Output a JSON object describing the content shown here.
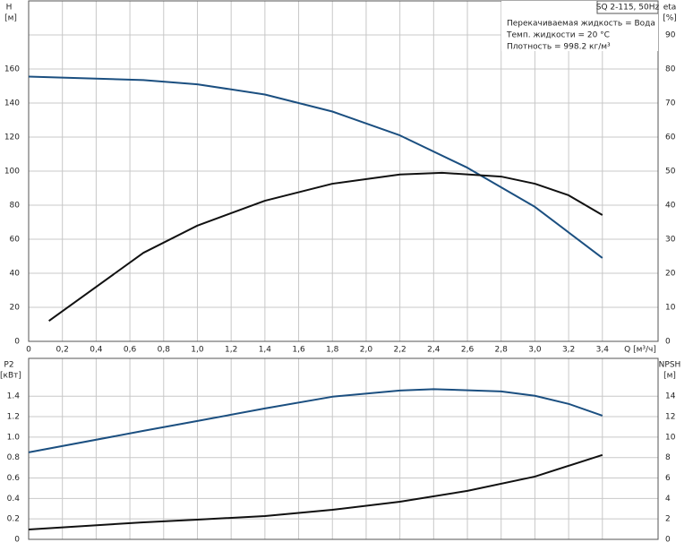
{
  "chart_data": [
    {
      "type": "line",
      "title": "SQ 2-115, 50Hz",
      "annotations": [
        "Перекачиваемая жидкость = Вода",
        "Темп. жидкости = 20 °C",
        "Плотность = 998.2 кг/м³"
      ],
      "xlabel": "Q [м³/ч]",
      "ylabel": "H",
      "ylabel_unit": "[м]",
      "y2label": "eta",
      "y2label_unit": "[%]",
      "xlim": [
        0,
        3.73
      ],
      "ylim": [
        0,
        200
      ],
      "y2lim": [
        0,
        100
      ],
      "grid": true,
      "xticks": [
        0,
        {
          "value": 0.2,
          "label": "0,2"
        },
        {
          "value": 0.4,
          "label": "0,4"
        },
        {
          "value": 0.6,
          "label": "0,6"
        },
        {
          "value": 0.8,
          "label": "0,8"
        },
        {
          "value": 1.0,
          "label": "1,0"
        },
        {
          "value": 1.2,
          "label": "1,2"
        },
        {
          "value": 1.4,
          "label": "1,4"
        },
        {
          "value": 1.6,
          "label": "1,6"
        },
        {
          "value": 1.8,
          "label": "1,8"
        },
        {
          "value": 2.0,
          "label": "2,0"
        },
        {
          "value": 2.2,
          "label": "2,2"
        },
        {
          "value": 2.4,
          "label": "2,4"
        },
        {
          "value": 2.6,
          "label": "2,6"
        },
        {
          "value": 2.8,
          "label": "2,8"
        },
        {
          "value": 3.0,
          "label": "3,0"
        },
        {
          "value": 3.2,
          "label": "3,2"
        },
        {
          "value": 3.4,
          "label": "3,4"
        }
      ],
      "yticks": [
        0,
        20,
        40,
        60,
        80,
        100,
        120,
        140,
        160
      ],
      "y2ticks": [
        0,
        10,
        20,
        30,
        40,
        50,
        60,
        70,
        80,
        90
      ],
      "series": [
        {
          "name": "H",
          "color": "#1b4f80",
          "x": [
            0,
            0.68,
            1.0,
            1.4,
            1.8,
            2.2,
            2.6,
            3.0,
            3.4
          ],
          "values": [
            155.5,
            153.5,
            151,
            145,
            135,
            121,
            102,
            79,
            49
          ]
        },
        {
          "name": "eta",
          "color": "#111111",
          "axis": "y2",
          "x": [
            0.12,
            0.68,
            1.0,
            1.4,
            1.8,
            2.2,
            2.45,
            2.8,
            3.0,
            3.2,
            3.4
          ],
          "values": [
            6,
            26,
            34,
            41.3,
            46.3,
            49,
            49.5,
            48.4,
            46.3,
            42.9,
            37.1
          ]
        }
      ]
    },
    {
      "type": "line",
      "ylabel": "P2",
      "ylabel_unit": "[кВт]",
      "y2label": "NPSH",
      "y2label_unit": "[м]",
      "xlim": [
        0,
        3.73
      ],
      "ylim": [
        0,
        1.77
      ],
      "y2lim": [
        0,
        17.7
      ],
      "grid": true,
      "yticks": [
        0,
        0.2,
        0.4,
        0.6,
        0.8,
        {
          "value": 1.0,
          "label": "1.0"
        },
        1.2,
        1.4
      ],
      "y2ticks": [
        0,
        2,
        4,
        6,
        8,
        10,
        12,
        14
      ],
      "series": [
        {
          "name": "P2",
          "color": "#1b4f80",
          "x": [
            0,
            0.68,
            1.0,
            1.4,
            1.8,
            2.2,
            2.4,
            2.8,
            3.0,
            3.2,
            3.4
          ],
          "values": [
            0.851,
            1.061,
            1.158,
            1.28,
            1.395,
            1.456,
            1.469,
            1.447,
            1.404,
            1.325,
            1.21
          ]
        },
        {
          "name": "NPSH",
          "color": "#111111",
          "axis": "y2",
          "x": [
            0,
            0.68,
            1.0,
            1.4,
            1.8,
            2.2,
            2.6,
            3.0,
            3.4
          ],
          "values": [
            0.96,
            1.67,
            1.93,
            2.28,
            2.89,
            3.68,
            4.74,
            6.14,
            8.25
          ]
        }
      ]
    }
  ]
}
